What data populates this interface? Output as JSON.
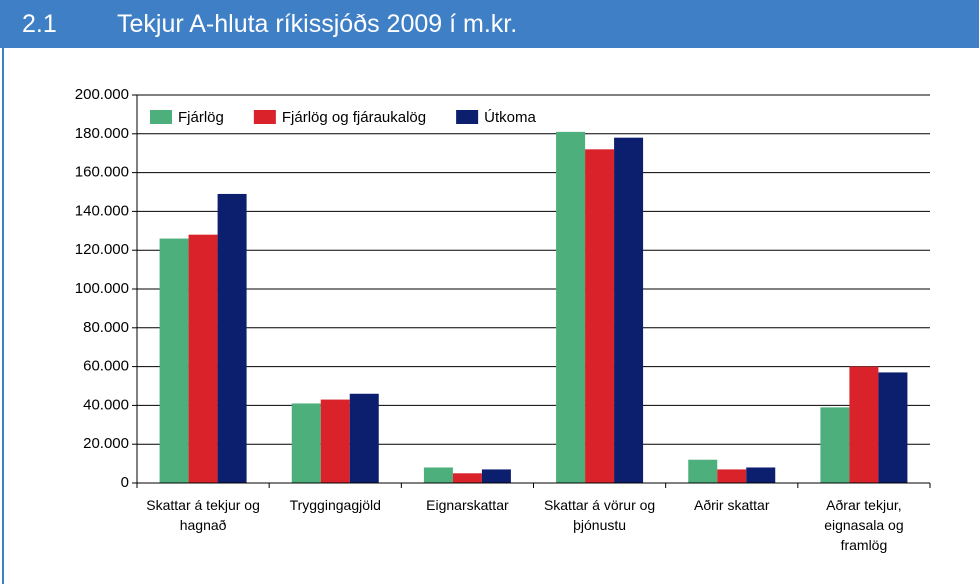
{
  "header": {
    "number": "2.1",
    "title": "Tekjur A-hluta ríkissjóðs 2009 í m.kr."
  },
  "chart_data": {
    "type": "bar",
    "categories": [
      "Skattar á tekjur og hagnað",
      "Tryggingagjöld",
      "Eignarskattar",
      "Skattar á vörur og þjónustu",
      "Aðrir skattar",
      "Aðrar tekjur, eignasala og framlög"
    ],
    "series": [
      {
        "name": "Fjárlög",
        "color": "#4daf7c",
        "values": [
          126000,
          41000,
          8000,
          181000,
          12000,
          39000
        ]
      },
      {
        "name": "Fjárlög og fjáraukalög",
        "color": "#d9222a",
        "values": [
          128000,
          43000,
          5000,
          172000,
          7000,
          60000
        ]
      },
      {
        "name": "Útkoma",
        "color": "#0c1f6e",
        "values": [
          149000,
          46000,
          7000,
          178000,
          8000,
          57000
        ]
      }
    ],
    "ylim": [
      0,
      200000
    ],
    "yticks": [
      0,
      {
        "value": 20000,
        "label": "20.000"
      },
      {
        "value": 40000,
        "label": "40.000"
      },
      {
        "value": 60000,
        "label": "60.000"
      },
      {
        "value": 80000,
        "label": "80.000"
      },
      {
        "value": 100000,
        "label": "100.000"
      },
      {
        "value": 120000,
        "label": "120.000"
      },
      {
        "value": 140000,
        "label": "140.000"
      },
      {
        "value": 160000,
        "label": "160.000"
      },
      {
        "value": 180000,
        "label": "180.000"
      },
      {
        "value": 200000,
        "label": "200.000"
      }
    ],
    "grid": true,
    "legend": "upper left"
  }
}
